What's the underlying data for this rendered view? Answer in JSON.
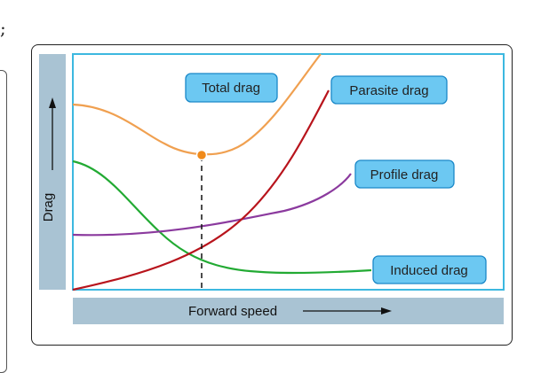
{
  "page_fragment": ";",
  "diagram": {
    "y_axis_label": "Drag",
    "x_axis_label": "Forward speed",
    "curve_labels": {
      "total": "Total drag",
      "parasite": "Parasite drag",
      "profile": "Profile drag",
      "induced": "Induced drag"
    },
    "colors": {
      "total": "#f0a050",
      "parasite": "#b8141c",
      "profile": "#8b3a9e",
      "induced": "#22aa33",
      "label_box_fill": "#6cc8f2",
      "label_box_stroke": "#1a88c8",
      "plot_border": "#3cb8e0",
      "axis_band": "#a9c3d3",
      "min_point": "#f08a1a"
    }
  }
}
